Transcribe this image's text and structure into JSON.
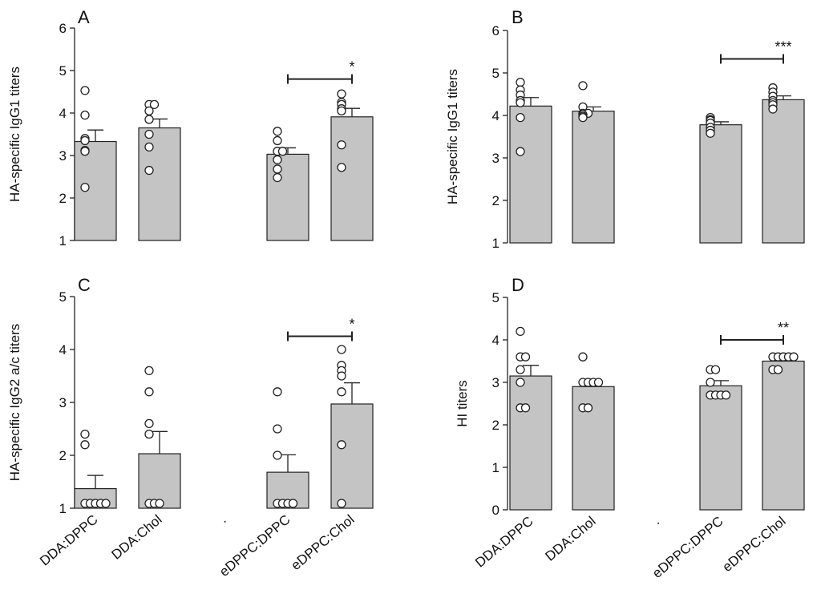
{
  "figure": {
    "categories": [
      "DDA:DPPC",
      "DDA:Chol",
      ".",
      "eDPPC:DPPC",
      "eDPPC:Chol"
    ],
    "colors": {
      "bar": "#c4c4c4",
      "stroke": "#222222",
      "point_fill": "#ffffff"
    }
  },
  "chart_data": [
    {
      "type": "bar",
      "title": "A",
      "ylabel": "HA-specific IgG1 titers",
      "xlabel": "",
      "ylim": [
        1,
        6
      ],
      "yticks": [
        "1",
        "2",
        "3",
        "4",
        "5",
        "6"
      ],
      "categories": [
        "DDA:DPPC",
        "DDA:Chol",
        "eDPPC:DPPC",
        "eDPPC:Chol"
      ],
      "values": [
        3.33,
        3.65,
        3.03,
        3.91
      ],
      "sem": [
        0.27,
        0.21,
        0.15,
        0.2
      ],
      "points": [
        [
          4.53,
          3.95,
          3.4,
          3.35,
          3.12,
          3.1,
          2.25
        ],
        [
          4.2,
          4.2,
          4.05,
          3.85,
          3.5,
          3.2,
          2.65
        ],
        [
          3.57,
          3.35,
          3.1,
          3.1,
          2.9,
          2.68,
          2.48
        ],
        [
          4.45,
          4.25,
          4.2,
          4.1,
          4.05,
          3.25,
          2.72
        ]
      ],
      "significance": {
        "from": 2,
        "to": 3,
        "label": "*",
        "y": 4.8
      }
    },
    {
      "type": "bar",
      "title": "B",
      "ylabel": "HA-specific IgG1 titers",
      "xlabel": "",
      "ylim": [
        1,
        6
      ],
      "yticks": [
        "1",
        "2",
        "3",
        "4",
        "5",
        "6"
      ],
      "categories": [
        "DDA:DPPC",
        "DDA:Chol",
        "eDPPC:DPPC",
        "eDPPC:Chol"
      ],
      "values": [
        4.22,
        4.1,
        3.78,
        4.37
      ],
      "sem": [
        0.2,
        0.1,
        0.07,
        0.09
      ],
      "points": [
        [
          4.78,
          4.6,
          4.48,
          4.35,
          4.3,
          3.95,
          3.15
        ],
        [
          4.7,
          4.2,
          4.05,
          4.05,
          4.02,
          3.98,
          3.95
        ],
        [
          3.95,
          3.9,
          3.88,
          3.82,
          3.72,
          3.65,
          3.58
        ],
        [
          4.65,
          4.55,
          4.45,
          4.35,
          4.3,
          4.25,
          4.15
        ]
      ],
      "significance": {
        "from": 2,
        "to": 3,
        "label": "***",
        "y": 5.33
      }
    },
    {
      "type": "bar",
      "title": "C",
      "ylabel": "HA-specific IgG2 a/c  titers",
      "xlabel": "",
      "ylim": [
        1,
        5
      ],
      "yticks": [
        "1",
        "2",
        "3",
        "4",
        "5"
      ],
      "categories": [
        "DDA:DPPC",
        "DDA:Chol",
        "eDPPC:DPPC",
        "eDPPC:Chol"
      ],
      "values": [
        1.37,
        2.03,
        1.68,
        2.97
      ],
      "sem": [
        0.25,
        0.42,
        0.33,
        0.4
      ],
      "points": [
        [
          2.4,
          2.2,
          1,
          1,
          1,
          1,
          1
        ],
        [
          3.6,
          3.2,
          2.6,
          2.4,
          1,
          1,
          1
        ],
        [
          3.2,
          2.5,
          2,
          1,
          1,
          1,
          1
        ],
        [
          4,
          3.7,
          3.6,
          3.5,
          3.2,
          2.2,
          1
        ]
      ],
      "significance": {
        "from": 2,
        "to": 3,
        "label": "*",
        "y": 4.25
      }
    },
    {
      "type": "bar",
      "title": "D",
      "ylabel": "HI titers",
      "xlabel": "",
      "ylim": [
        0,
        5
      ],
      "yticks": [
        "0",
        "1",
        "2",
        "3",
        "4",
        "5"
      ],
      "categories": [
        "DDA:DPPC",
        "DDA:Chol",
        "eDPPC:DPPC",
        "eDPPC:Chol"
      ],
      "values": [
        3.15,
        2.9,
        2.92,
        3.5
      ],
      "sem": [
        0.25,
        0.1,
        0.12,
        0.08
      ],
      "points": [
        [
          4.2,
          3.6,
          3.6,
          3.3,
          3,
          2.4,
          2.4
        ],
        [
          3.6,
          3,
          3,
          3,
          3,
          2.4,
          2.4
        ],
        [
          3.3,
          3.3,
          3,
          2.7,
          2.7,
          2.7,
          2.7
        ],
        [
          3.6,
          3.6,
          3.6,
          3.6,
          3.6,
          3.3,
          3.3
        ]
      ],
      "significance": {
        "from": 2,
        "to": 3,
        "label": "**",
        "y": 4.0
      }
    }
  ]
}
